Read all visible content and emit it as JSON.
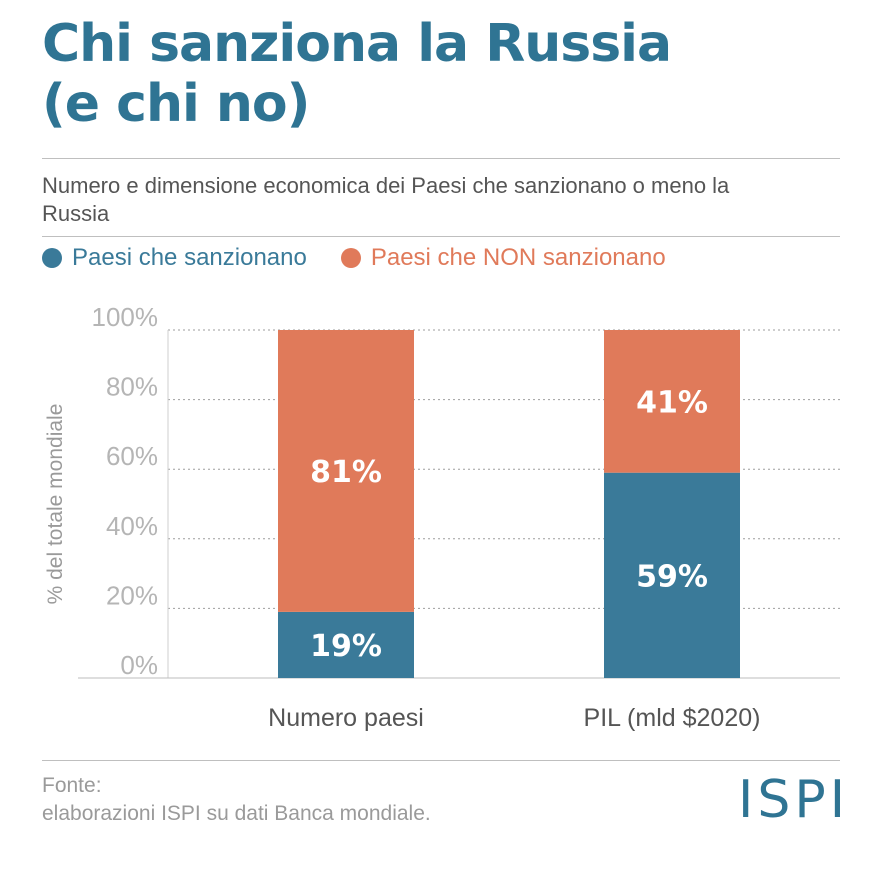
{
  "header": {
    "title_line1": "Chi sanziona la Russia",
    "title_line2": "(e chi no)",
    "subtitle": "Numero e dimensione economica dei Paesi che sanzionano o meno la Russia"
  },
  "legend": {
    "items": [
      {
        "label": "Paesi che sanzionano",
        "color": "#3a7a99"
      },
      {
        "label": "Paesi che NON sanzionano",
        "color": "#e07a5a"
      }
    ]
  },
  "chart_data": {
    "type": "bar",
    "stacked": true,
    "categories": [
      "Numero paesi",
      "PIL (mld $2020)"
    ],
    "series": [
      {
        "name": "Paesi che sanzionano",
        "values": [
          19,
          59
        ],
        "labels": [
          "19%",
          "59%"
        ],
        "color": "#3a7a99"
      },
      {
        "name": "Paesi che NON sanzionano",
        "values": [
          81,
          41
        ],
        "labels": [
          "81%",
          "41%"
        ],
        "color": "#e07a5a"
      }
    ],
    "ylabel": "% del totale mondiale",
    "ylim": [
      0,
      100
    ],
    "yticks": [
      "0%",
      "20%",
      "40%",
      "60%",
      "80%",
      "100%"
    ],
    "grid": true
  },
  "footer": {
    "source_label": "Fonte:",
    "source_text": "elaborazioni ISPI su dati Banca mondiale.",
    "logo": "ISPI"
  }
}
